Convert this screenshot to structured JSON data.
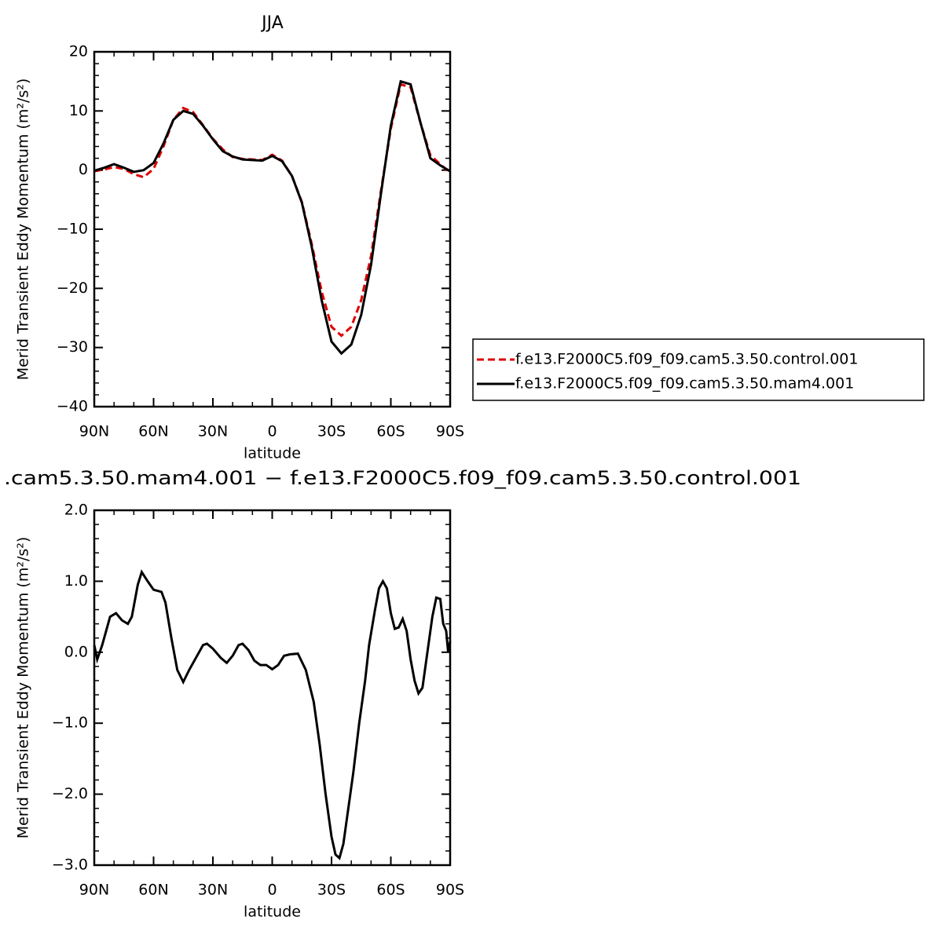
{
  "chart_data": [
    {
      "type": "line",
      "title": "JJA",
      "xlabel": "latitude",
      "ylabel": "Merid Transient Eddy Momentum (m²/s²)",
      "x": [
        90,
        85,
        80,
        75,
        70,
        65,
        60,
        55,
        50,
        45,
        40,
        35,
        30,
        25,
        20,
        15,
        10,
        5,
        0,
        -5,
        -10,
        -15,
        -20,
        -25,
        -30,
        -35,
        -40,
        -45,
        -50,
        -55,
        -60,
        -65,
        -70,
        -75,
        -80,
        -85,
        -90
      ],
      "series": [
        {
          "name": "f.e13.F2000C5.f09_f09.cam5.3.50.control.001",
          "color": "#e00000",
          "dash": "dashed",
          "values": [
            -0.2,
            0.1,
            0.5,
            0.2,
            -0.7,
            -1.2,
            0.2,
            4.0,
            8.5,
            10.5,
            9.8,
            7.6,
            5.3,
            3.5,
            2.2,
            1.9,
            1.8,
            1.7,
            2.6,
            1.6,
            -1.0,
            -5.4,
            -12.5,
            -20.5,
            -26.5,
            -28,
            -26.5,
            -22,
            -14.5,
            -3.5,
            7.0,
            14.5,
            14.0,
            8.0,
            2.5,
            1.0,
            -0.5
          ]
        },
        {
          "name": "f.e13.F2000C5.f09_f09.cam5.3.50.mam4.001",
          "color": "#000000",
          "dash": "solid",
          "values": [
            -0.1,
            0.4,
            1.0,
            0.4,
            -0.3,
            0.0,
            1.2,
            4.5,
            8.5,
            10.0,
            9.5,
            7.5,
            5.2,
            3.2,
            2.3,
            1.8,
            1.7,
            1.6,
            2.4,
            1.5,
            -1.0,
            -5.5,
            -13,
            -22,
            -29,
            -31,
            -29.5,
            -24.5,
            -16,
            -4,
            7.5,
            15.0,
            14.5,
            8,
            2,
            0.8,
            -0.2
          ]
        }
      ],
      "xlim": [
        90,
        -90
      ],
      "xticks": [
        {
          "value": 90,
          "label": "90N"
        },
        {
          "value": 60,
          "label": "60N"
        },
        {
          "value": 30,
          "label": "30N"
        },
        0,
        {
          "value": -30,
          "label": "30S"
        },
        {
          "value": -60,
          "label": "60S"
        },
        {
          "value": -90,
          "label": "90S"
        }
      ],
      "ylim": [
        -40,
        20
      ],
      "yticks": [
        {
          "value": -40,
          "label": "−40"
        },
        {
          "value": -30,
          "label": "−30"
        },
        {
          "value": -20,
          "label": "−20"
        },
        {
          "value": -10,
          "label": "−10"
        },
        0,
        10,
        20
      ],
      "legend": "outside-right"
    },
    {
      "type": "line",
      "title": ".cam5.3.50.mam4.001 − f.e13.F2000C5.f09_f09.cam5.3.50.control.001",
      "xlabel": "latitude",
      "ylabel": "Merid Transient Eddy Momentum (m²/s²)",
      "x": [
        90,
        88.5,
        86,
        84,
        82,
        79,
        76,
        73,
        71,
        68,
        66,
        63,
        60,
        56,
        54,
        51,
        48,
        45,
        42,
        38,
        35,
        33,
        30,
        26,
        23,
        20,
        17,
        15,
        12,
        9,
        6,
        3,
        0,
        -3,
        -6,
        -9,
        -13,
        -17,
        -21,
        -24,
        -27,
        -30,
        -32,
        -34,
        -36,
        -38,
        -41,
        -44,
        -47,
        -49,
        -52,
        -54,
        -56,
        -58,
        -60,
        -62,
        -64,
        -66,
        -68,
        -70,
        -72,
        -74,
        -76,
        -78,
        -81,
        -83,
        -85,
        -86.5,
        -88,
        -89,
        -90
      ],
      "values": [
        0.1,
        -0.1,
        0.1,
        0.3,
        0.5,
        0.55,
        0.45,
        0.4,
        0.5,
        0.95,
        1.13,
        1.0,
        0.88,
        0.85,
        0.7,
        0.2,
        -0.25,
        -0.42,
        -0.25,
        -0.05,
        0.1,
        0.12,
        0.05,
        -0.08,
        -0.15,
        -0.05,
        0.1,
        0.12,
        0.03,
        -0.12,
        -0.18,
        -0.18,
        -0.24,
        -0.18,
        -0.05,
        -0.03,
        -0.02,
        -0.25,
        -0.7,
        -1.3,
        -2.0,
        -2.6,
        -2.85,
        -2.9,
        -2.7,
        -2.3,
        -1.7,
        -1.0,
        -0.4,
        0.1,
        0.6,
        0.9,
        1.0,
        0.9,
        0.55,
        0.33,
        0.35,
        0.47,
        0.3,
        -0.1,
        -0.4,
        -0.58,
        -0.5,
        -0.1,
        0.5,
        0.77,
        0.75,
        0.4,
        0.3,
        0.0,
        0.15
      ],
      "color": "#000000",
      "xlim": [
        90,
        -90
      ],
      "xticks": [
        {
          "value": 90,
          "label": "90N"
        },
        {
          "value": 60,
          "label": "60N"
        },
        {
          "value": 30,
          "label": "30N"
        },
        0,
        {
          "value": -30,
          "label": "30S"
        },
        {
          "value": -60,
          "label": "60S"
        },
        {
          "value": -90,
          "label": "90S"
        }
      ],
      "ylim": [
        -3,
        2
      ],
      "yticks": [
        {
          "value": -3,
          "label": "−3.0"
        },
        {
          "value": -2,
          "label": "−2.0"
        },
        {
          "value": -1,
          "label": "−1.0"
        },
        {
          "value": 0,
          "label": "0.0"
        },
        {
          "value": 1,
          "label": "1.0"
        },
        {
          "value": 2,
          "label": "2.0"
        }
      ]
    }
  ]
}
